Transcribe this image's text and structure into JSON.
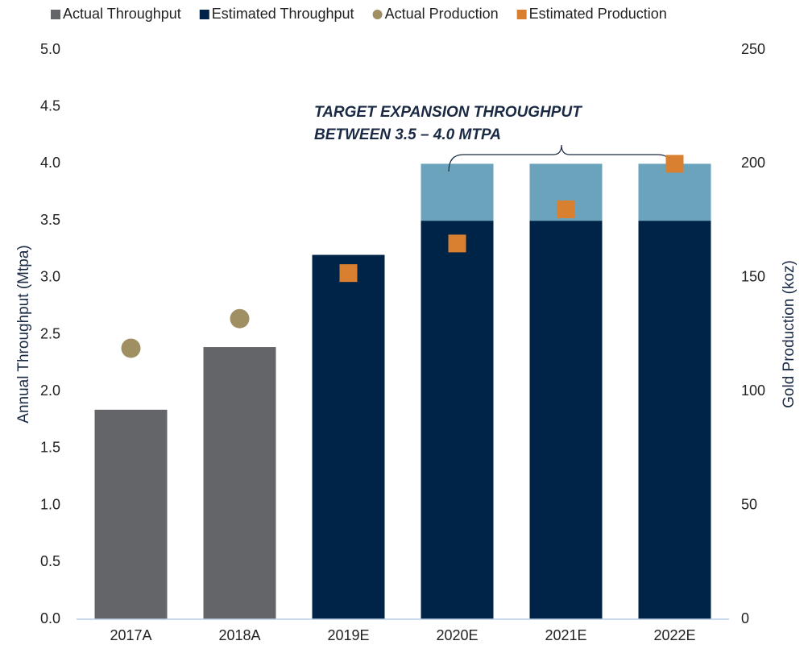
{
  "chart_data": {
    "type": "bar",
    "categories": [
      "2017A",
      "2018A",
      "2019E",
      "2020E",
      "2021E",
      "2022E"
    ],
    "series": [
      {
        "name": "Actual Throughput",
        "color": "#646569",
        "values": [
          1.84,
          2.39,
          null,
          null,
          null,
          null
        ]
      },
      {
        "name": "Estimated Throughput",
        "color": "#002447",
        "values": [
          null,
          null,
          3.2,
          3.5,
          3.5,
          3.5
        ]
      },
      {
        "color": "#6aa3bb",
        "values": [
          null,
          null,
          null,
          0.5,
          0.5,
          0.5
        ]
      },
      {
        "name": "Actual Production",
        "color": "#a08f62",
        "marker": "circle",
        "axis": "y2",
        "values": [
          119,
          132,
          null,
          null,
          null,
          null
        ]
      },
      {
        "name": "Estimated Production",
        "color": "#d97f30",
        "marker": "square",
        "axis": "y2",
        "values": [
          null,
          null,
          152,
          165,
          180,
          200
        ]
      }
    ],
    "ylabel": "Annual Throughput (Mtpa)",
    "y2label": "Gold Production (koz)",
    "annotation": [
      "TARGET EXPANSION THROUGHPUT",
      "BETWEEN 3.5 – 4.0 MTPA"
    ],
    "ylim": [
      0,
      5
    ],
    "yticks": [
      {
        "value": 0,
        "label": "0.0"
      },
      0.5,
      {
        "value": 1,
        "label": "1.0"
      },
      1.5,
      {
        "value": 2,
        "label": "2.0"
      },
      2.5,
      {
        "value": 3,
        "label": "3.0"
      },
      3.5,
      {
        "value": 4,
        "label": "4.0"
      },
      4.5,
      {
        "value": 5,
        "label": "5.0"
      }
    ],
    "y2lim": [
      0,
      250
    ],
    "y2ticks": [
      0,
      50,
      100,
      150,
      200,
      250
    ],
    "grid": false
  }
}
